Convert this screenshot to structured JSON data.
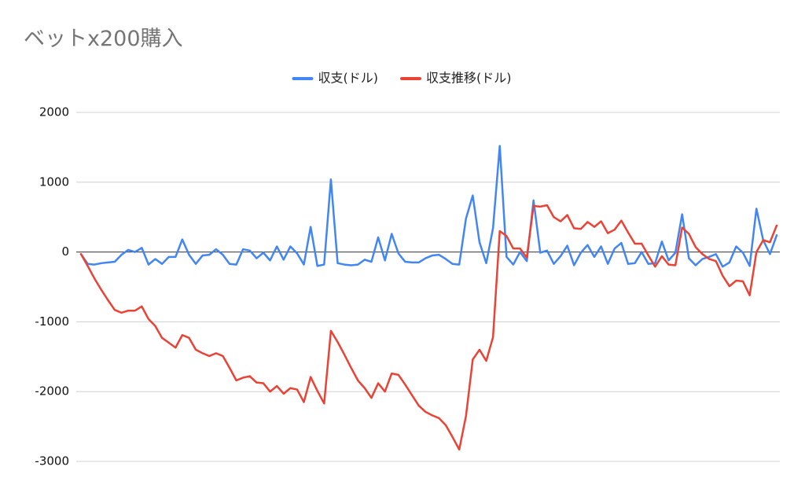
{
  "chart_data": {
    "type": "line",
    "title": "ベットx200購入",
    "ylim": [
      -3000,
      2000
    ],
    "yticks": [
      -3000,
      -2000,
      -1000,
      0,
      1000,
      2000
    ],
    "grid": true,
    "legend": "top",
    "series": [
      {
        "name": "収支(ドル)",
        "color": "#4285f4",
        "values": [
          -30,
          -170,
          -180,
          -160,
          -150,
          -140,
          -40,
          30,
          0,
          60,
          -180,
          -100,
          -170,
          -70,
          -70,
          180,
          -40,
          -170,
          -50,
          -40,
          40,
          -40,
          -170,
          -180,
          40,
          20,
          -90,
          -10,
          -120,
          80,
          -110,
          80,
          -20,
          -180,
          360,
          -200,
          -180,
          1040,
          -160,
          -180,
          -190,
          -180,
          -110,
          -140,
          210,
          -120,
          260,
          -20,
          -140,
          -150,
          -150,
          -90,
          -50,
          -40,
          -100,
          -170,
          -180,
          480,
          810,
          140,
          -160,
          340,
          1520,
          -70,
          -180,
          0,
          -130,
          740,
          -10,
          20,
          -170,
          -60,
          90,
          -190,
          -10,
          100,
          -70,
          80,
          -170,
          50,
          130,
          -170,
          -160,
          0,
          -170,
          -160,
          150,
          -120,
          -10,
          540,
          -90,
          -190,
          -100,
          -70,
          -30,
          -210,
          -150,
          80,
          -10,
          -200,
          620,
          170,
          -30,
          240
        ]
      },
      {
        "name": "収支推移(ドル)",
        "color": "#ea4335",
        "values": [
          -30,
          -200,
          -380,
          -540,
          -690,
          -830,
          -870,
          -840,
          -840,
          -780,
          -960,
          -1060,
          -1230,
          -1300,
          -1370,
          -1190,
          -1230,
          -1400,
          -1450,
          -1490,
          -1450,
          -1490,
          -1660,
          -1840,
          -1800,
          -1780,
          -1870,
          -1880,
          -2000,
          -1920,
          -2030,
          -1950,
          -1970,
          -2150,
          -1790,
          -1990,
          -2170,
          -1130,
          -1290,
          -1470,
          -1660,
          -1840,
          -1950,
          -2090,
          -1880,
          -2000,
          -1740,
          -1760,
          -1900,
          -2050,
          -2200,
          -2290,
          -2340,
          -2380,
          -2480,
          -2650,
          -2830,
          -2350,
          -1540,
          -1400,
          -1560,
          -1220,
          300,
          230,
          50,
          50,
          -80,
          660,
          650,
          670,
          500,
          440,
          530,
          340,
          330,
          430,
          360,
          440,
          270,
          320,
          450,
          280,
          120,
          120,
          -50,
          -210,
          -60,
          -180,
          -190,
          350,
          260,
          70,
          -30,
          -100,
          -130,
          -340,
          -490,
          -410,
          -420,
          -620,
          0,
          170,
          140,
          380
        ]
      }
    ]
  }
}
